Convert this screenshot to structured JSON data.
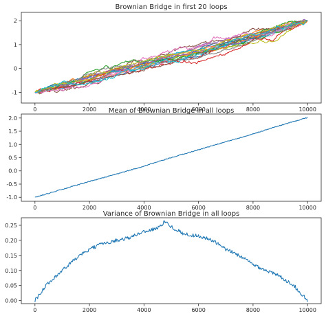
{
  "colors": [
    "#1f77b4",
    "#ff7f0e",
    "#2ca02c",
    "#d62728",
    "#9467bd",
    "#8c564b",
    "#e377c2",
    "#7f7f7f",
    "#bcbd22",
    "#17becf"
  ],
  "chart_data": [
    {
      "type": "line",
      "title": "Brownian Bridge in first 20 loops",
      "xlim": [
        -500,
        10500
      ],
      "ylim": [
        -1.45,
        2.35
      ],
      "x_ticks": [
        0,
        2000,
        4000,
        6000,
        8000,
        10000
      ],
      "y_ticks": [
        -1,
        0,
        1,
        2
      ],
      "grid": false,
      "n_series": 20,
      "x_start": 0,
      "x_end": 10000,
      "y_start": -1,
      "y_end": 2,
      "noise_scale": 0.35,
      "series_note": "20 random Brownian bridge paths from -1 to 2"
    },
    {
      "type": "line",
      "title": "Mean of Brownian Bridge in all loops",
      "xlim": [
        -500,
        10500
      ],
      "ylim": [
        -1.15,
        2.15
      ],
      "x_ticks": [
        0,
        2000,
        4000,
        6000,
        8000,
        10000
      ],
      "y_ticks": [
        -1.0,
        -0.5,
        0.0,
        0.5,
        1.0,
        1.5,
        2.0
      ],
      "y_tick_labels": [
        "-1.0",
        "-0.5",
        "0.0",
        "0.5",
        "1.0",
        "1.5",
        "2.0"
      ],
      "grid": false,
      "x": [
        0,
        1000,
        2000,
        3000,
        4000,
        5000,
        6000,
        7000,
        8000,
        9000,
        10000
      ],
      "y": [
        -1.0,
        -0.7,
        -0.4,
        -0.12,
        0.18,
        0.5,
        0.8,
        1.1,
        1.4,
        1.72,
        2.02
      ]
    },
    {
      "type": "line",
      "title": "Variance of Brownian Bridge in all loops",
      "xlim": [
        -500,
        10500
      ],
      "ylim": [
        -0.01,
        0.275
      ],
      "x_ticks": [
        0,
        2000,
        4000,
        6000,
        8000,
        10000
      ],
      "y_ticks": [
        0.0,
        0.05,
        0.1,
        0.15,
        0.2,
        0.25
      ],
      "y_tick_labels": [
        "0.00",
        "0.05",
        "0.10",
        "0.15",
        "0.20",
        "0.25"
      ],
      "grid": false,
      "x": [
        0,
        500,
        1000,
        1500,
        2000,
        2500,
        3000,
        3500,
        4000,
        4500,
        4800,
        5000,
        5500,
        6000,
        6500,
        7000,
        7500,
        8000,
        8500,
        9000,
        9500,
        10000
      ],
      "y": [
        0.0,
        0.06,
        0.1,
        0.14,
        0.17,
        0.19,
        0.2,
        0.21,
        0.23,
        0.24,
        0.265,
        0.245,
        0.22,
        0.215,
        0.2,
        0.17,
        0.15,
        0.12,
        0.1,
        0.08,
        0.05,
        0.0
      ]
    }
  ]
}
